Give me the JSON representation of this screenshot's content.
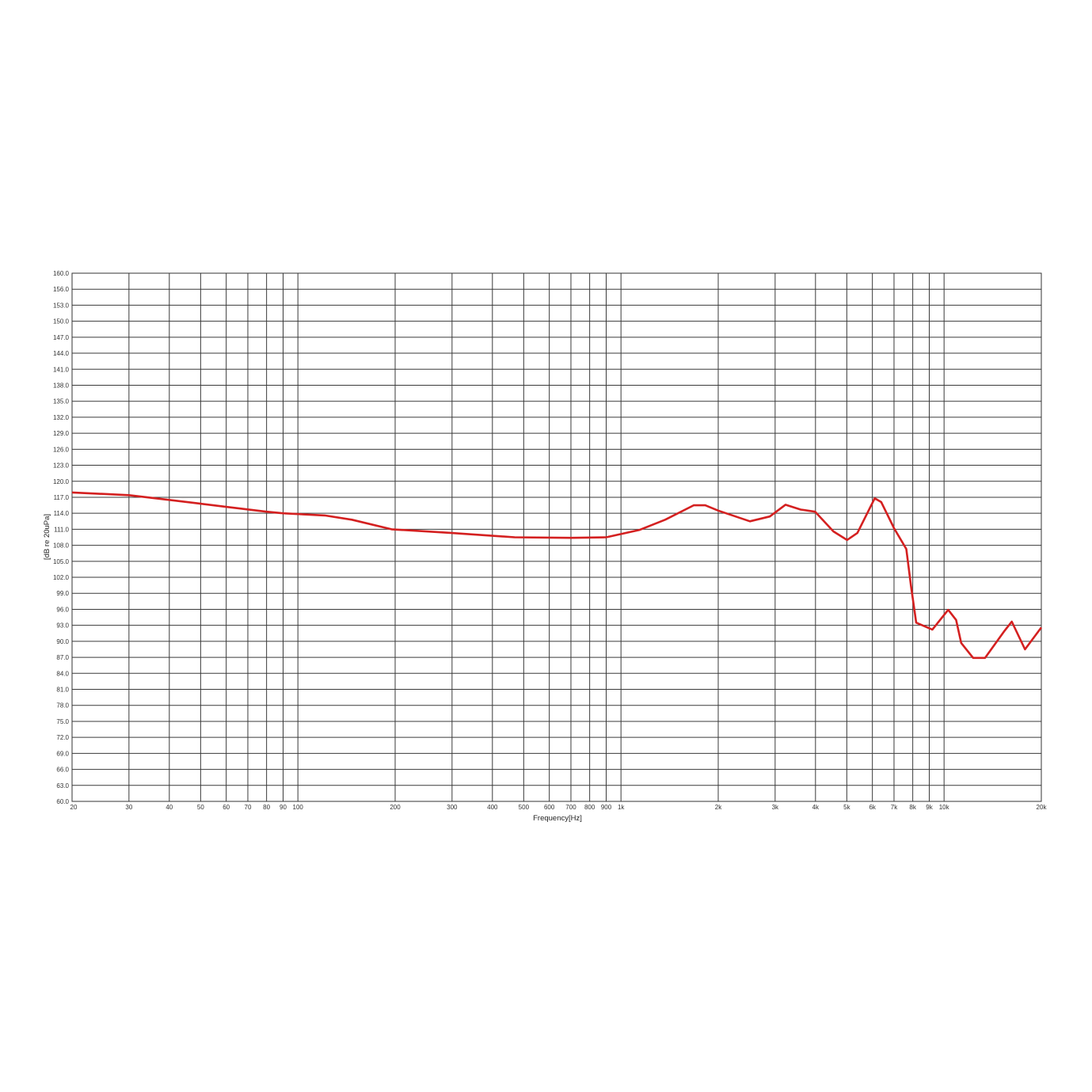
{
  "chart_data": {
    "type": "line",
    "title": "",
    "xlabel": "Frequency[Hz]",
    "ylabel": "[dB re 20uPa]",
    "x_scale": "log",
    "xlim": [
      20,
      20000
    ],
    "ylim": [
      60,
      160
    ],
    "grid": true,
    "line_color": "#d42020",
    "x_ticks": [
      {
        "value": 20,
        "label": "20"
      },
      {
        "value": 30,
        "label": "30"
      },
      {
        "value": 40,
        "label": "40"
      },
      {
        "value": 50,
        "label": "50"
      },
      {
        "value": 60,
        "label": "60"
      },
      {
        "value": 70,
        "label": "70"
      },
      {
        "value": 80,
        "label": "80"
      },
      {
        "value": 90,
        "label": "90"
      },
      {
        "value": 100,
        "label": "100"
      },
      {
        "value": 200,
        "label": "200"
      },
      {
        "value": 300,
        "label": "300"
      },
      {
        "value": 400,
        "label": "400"
      },
      {
        "value": 500,
        "label": "500"
      },
      {
        "value": 600,
        "label": "600"
      },
      {
        "value": 700,
        "label": "700"
      },
      {
        "value": 800,
        "label": "800"
      },
      {
        "value": 900,
        "label": "900"
      },
      {
        "value": 1000,
        "label": "1k"
      },
      {
        "value": 2000,
        "label": "2k"
      },
      {
        "value": 3000,
        "label": "3k"
      },
      {
        "value": 4000,
        "label": "4k"
      },
      {
        "value": 5000,
        "label": "5k"
      },
      {
        "value": 6000,
        "label": "6k"
      },
      {
        "value": 7000,
        "label": "7k"
      },
      {
        "value": 8000,
        "label": "8k"
      },
      {
        "value": 9000,
        "label": "9k"
      },
      {
        "value": 10000,
        "label": "10k"
      },
      {
        "value": 20000,
        "label": "20k"
      }
    ],
    "y_ticks": [
      "60.0",
      "63.0",
      "66.0",
      "69.0",
      "72.0",
      "75.0",
      "78.0",
      "81.0",
      "84.0",
      "87.0",
      "90.0",
      "93.0",
      "96.0",
      "99.0",
      "102.0",
      "105.0",
      "108.0",
      "111.0",
      "114.0",
      "117.0",
      "120.0",
      "123.0",
      "126.0",
      "129.0",
      "132.0",
      "135.0",
      "138.0",
      "141.0",
      "144.0",
      "147.0",
      "150.0",
      "153.0",
      "156.0",
      "160.0"
    ],
    "series": [
      {
        "x": [
          20,
          30,
          40,
          50,
          60,
          80,
          90,
          121,
          147,
          195,
          300,
          469,
          700,
          900,
          1143,
          1370,
          1679,
          1823,
          2000,
          2506,
          2890,
          3230,
          3598,
          3990,
          4545,
          5010,
          5390,
          6100,
          6390,
          7000,
          7640,
          7900,
          8200,
          9200,
          10300,
          10900,
          11300,
          12300,
          13400,
          15400,
          16200,
          17800,
          20000
        ],
        "y": [
          117.9,
          117.4,
          116.5,
          115.8,
          115.2,
          114.3,
          114.0,
          113.6,
          112.8,
          111.0,
          110.3,
          109.5,
          109.4,
          109.5,
          110.9,
          112.8,
          115.5,
          115.5,
          114.5,
          112.5,
          113.4,
          115.6,
          114.7,
          114.3,
          110.6,
          109.0,
          110.3,
          116.8,
          116.1,
          111.2,
          107.3,
          100.4,
          93.5,
          92.2,
          95.9,
          94.0,
          89.7,
          86.9,
          86.9,
          92.0,
          93.7,
          88.5,
          92.6
        ]
      }
    ]
  }
}
